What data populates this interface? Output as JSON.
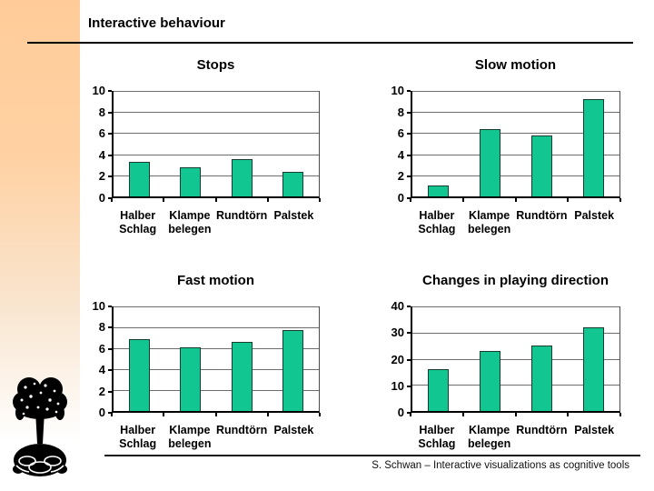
{
  "slide": {
    "title": "Interactive behaviour",
    "footer": "S. Schwan – Interactive visualizations as cognitive tools"
  },
  "colors": {
    "bar_fill": "#12c692",
    "bar_border": "#173d2f",
    "gridline": "#6e6e6e",
    "axis": "#000000",
    "sidebar_top": "#ffcc99"
  },
  "chart_data": [
    {
      "type": "bar",
      "title": "Stops",
      "categories": [
        "Halber Schlag",
        "Klampe belegen",
        "Rundtörn",
        "Palstek"
      ],
      "values": [
        3.3,
        2.8,
        3.5,
        2.3
      ],
      "xlabel": "",
      "ylabel": "",
      "ylim": [
        0,
        10
      ],
      "yticks": [
        0,
        2,
        4,
        6,
        8,
        10
      ],
      "grid": true,
      "legend": "none"
    },
    {
      "type": "bar",
      "title": "Slow motion",
      "categories": [
        "Halber Schlag",
        "Klampe belegen",
        "Rundtörn",
        "Palstek"
      ],
      "values": [
        1.0,
        6.4,
        5.8,
        9.2
      ],
      "xlabel": "",
      "ylabel": "",
      "ylim": [
        0,
        10
      ],
      "yticks": [
        0,
        2,
        4,
        6,
        8,
        10
      ],
      "grid": true,
      "legend": "none"
    },
    {
      "type": "bar",
      "title": "Fast motion",
      "categories": [
        "Halber Schlag",
        "Klampe belegen",
        "Rundtörn",
        "Palstek"
      ],
      "values": [
        6.9,
        6.1,
        6.6,
        7.7
      ],
      "xlabel": "",
      "ylabel": "",
      "ylim": [
        0,
        10
      ],
      "yticks": [
        0,
        2,
        4,
        6,
        8,
        10
      ],
      "grid": true,
      "legend": "none"
    },
    {
      "type": "bar",
      "title": "Changes in playing direction",
      "categories": [
        "Halber Schlag",
        "Klampe belegen",
        "Rundtörn",
        "Palstek"
      ],
      "values": [
        16,
        23,
        25,
        32
      ],
      "xlabel": "",
      "ylabel": "",
      "ylim": [
        0,
        40
      ],
      "yticks": [
        0,
        10,
        20,
        30,
        40
      ],
      "grid": true,
      "legend": "none"
    }
  ]
}
